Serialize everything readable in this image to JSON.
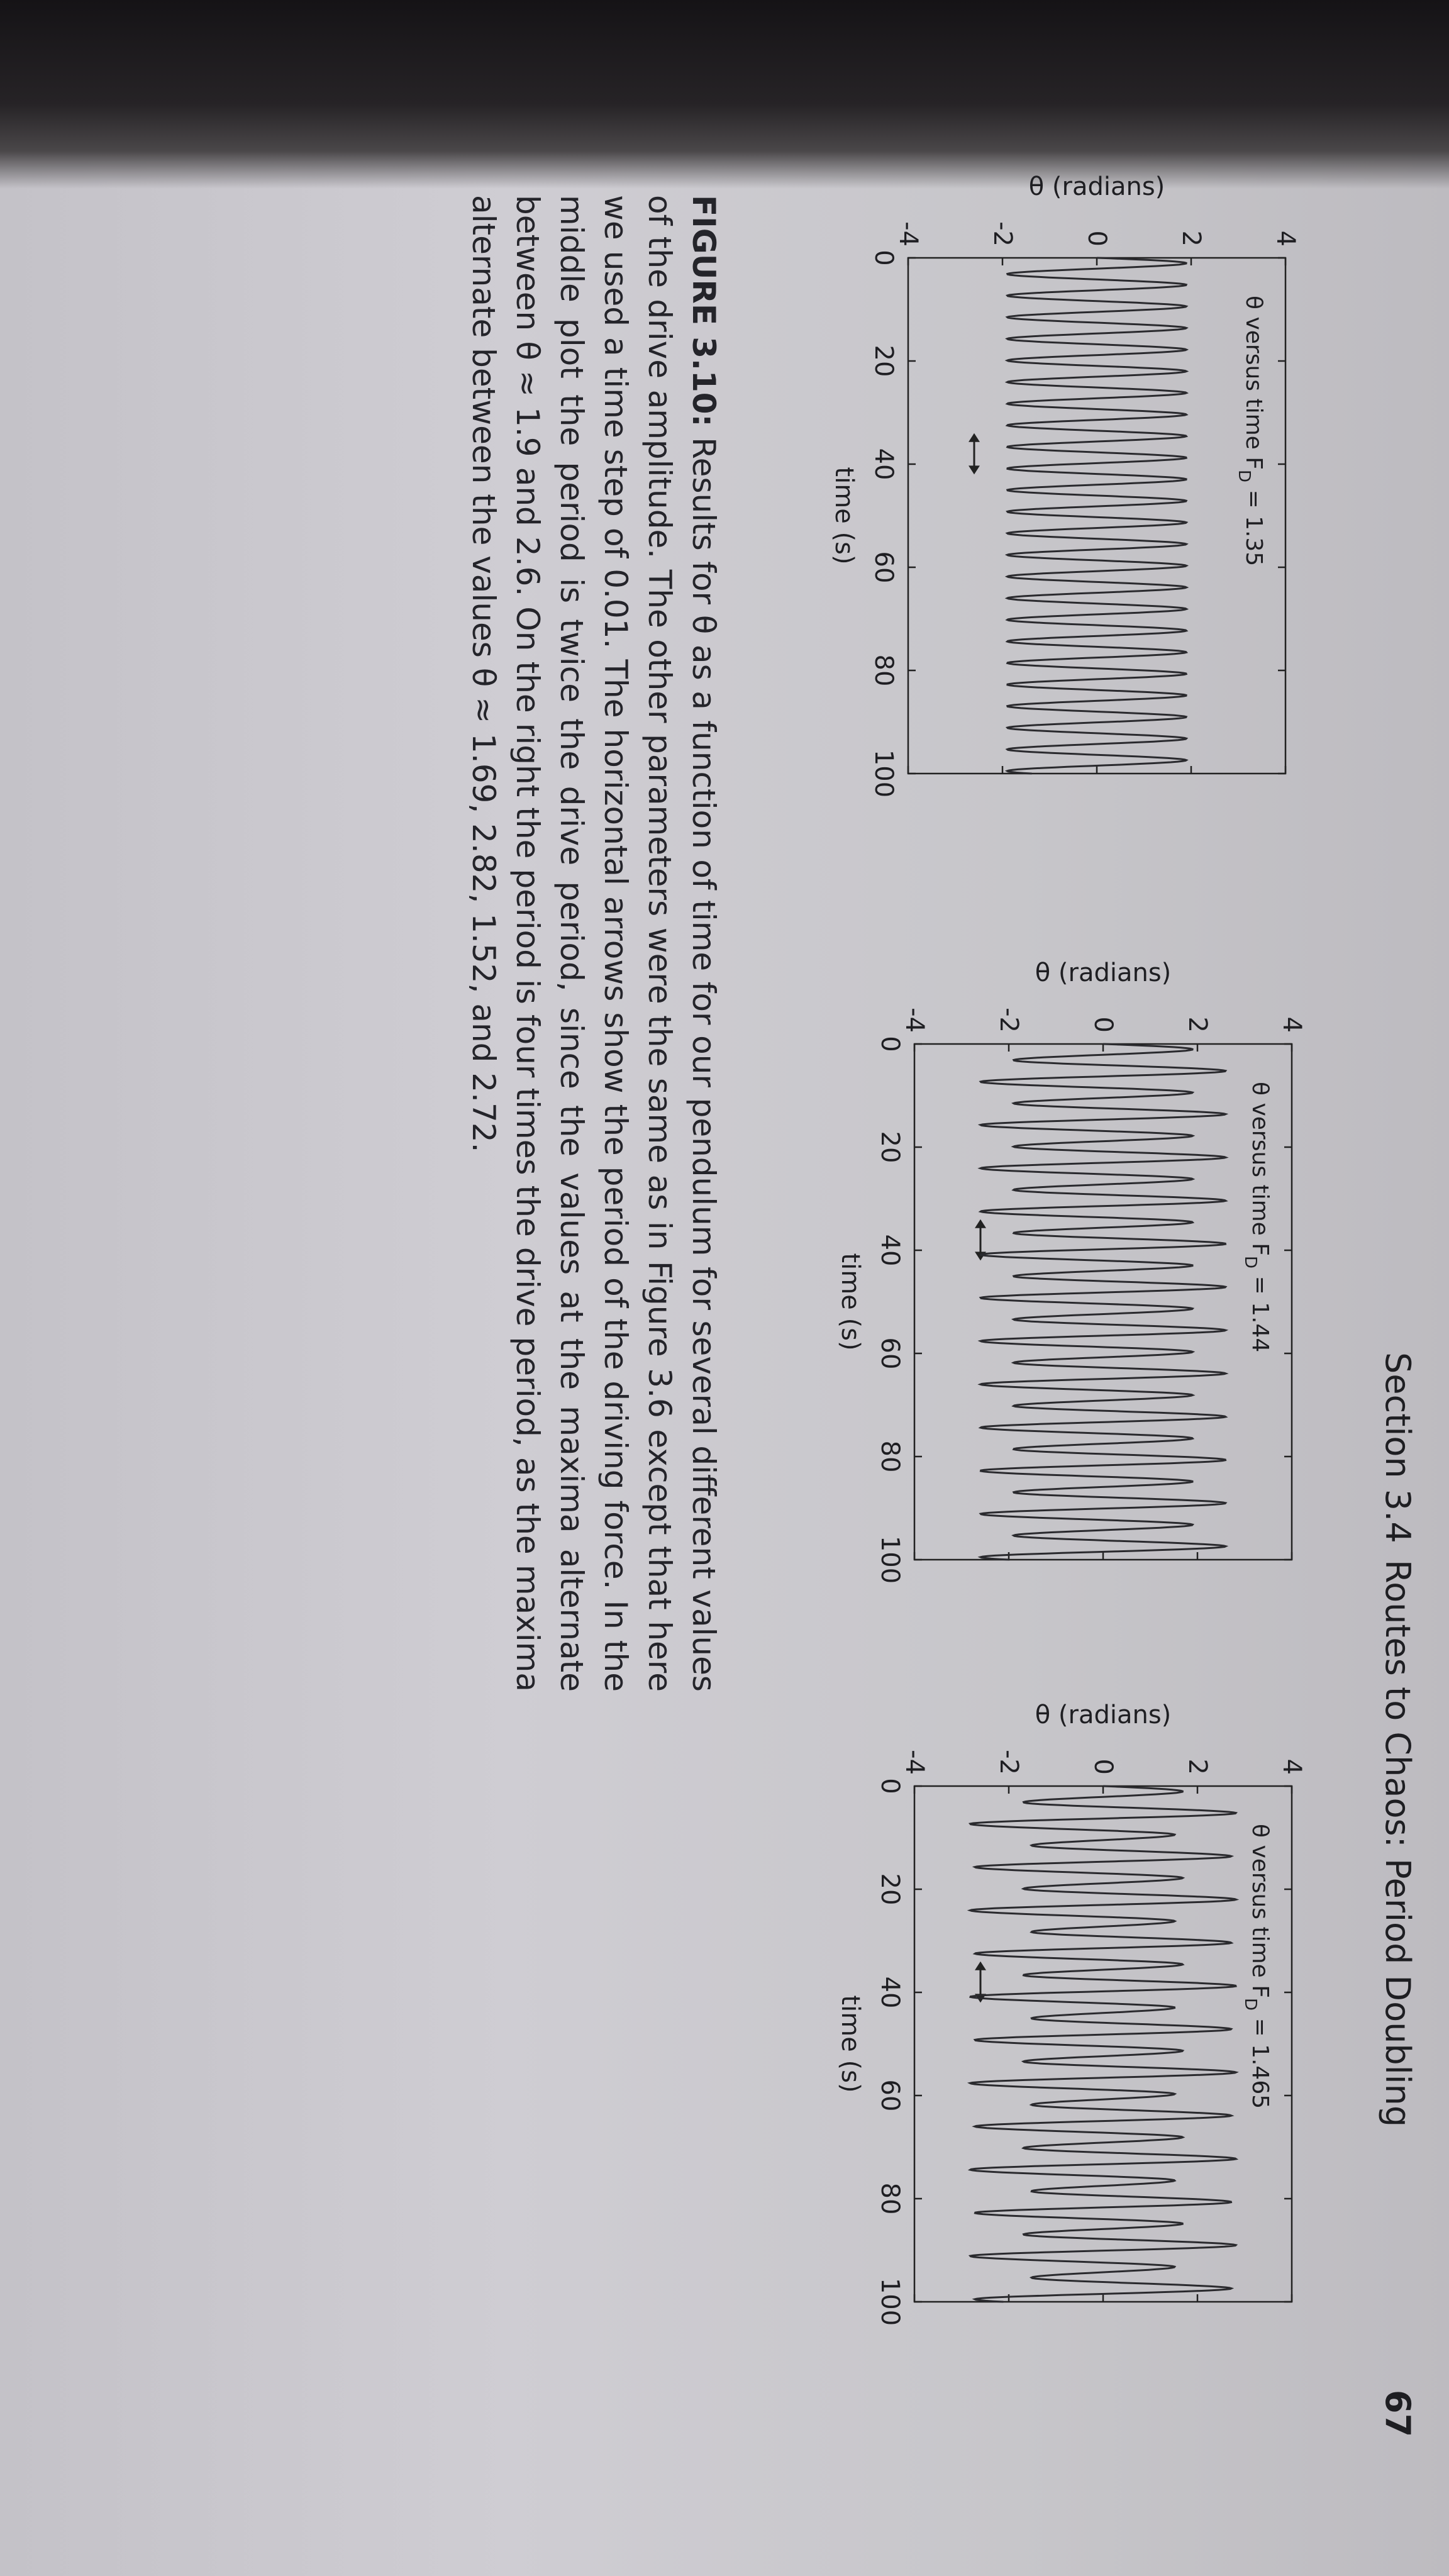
{
  "header": {
    "section": "Section 3.4",
    "title": "Routes to Chaos: Period Doubling",
    "page_number": "67"
  },
  "chart_data": [
    {
      "type": "line",
      "panel_label": "θ versus time",
      "fd_symbol": "F",
      "fd_subscript": "D",
      "fd_value": "= 1.35",
      "ylabel": "θ (radians)",
      "xlabel": "time (s)",
      "xlim": [
        0,
        100
      ],
      "ylim": [
        -4,
        4
      ],
      "xticks": [
        "0",
        "20",
        "40",
        "60",
        "80",
        "100"
      ],
      "yticks": [
        "-4",
        "-2",
        "0",
        "2",
        "4"
      ],
      "drive_period": 4.19,
      "maxima": [
        1.9
      ],
      "minima": [
        -1.9
      ],
      "arrow_x": [
        34,
        42
      ],
      "arrow_y": -2.6,
      "arrow_glyph": "↔"
    },
    {
      "type": "line",
      "panel_label": "θ versus time",
      "fd_symbol": "F",
      "fd_subscript": "D",
      "fd_value": "= 1.44",
      "ylabel": "θ (radians)",
      "xlabel": "time (s)",
      "xlim": [
        0,
        100
      ],
      "ylim": [
        -4,
        4
      ],
      "xticks": [
        "0",
        "20",
        "40",
        "60",
        "80",
        "100"
      ],
      "yticks": [
        "-4",
        "-2",
        "0",
        "2",
        "4"
      ],
      "drive_period": 4.19,
      "maxima": [
        1.9,
        2.6
      ],
      "minima": [
        -1.9,
        -2.6
      ],
      "arrow_x": [
        34,
        42
      ],
      "arrow_y": -2.6,
      "arrow_glyph": "↔"
    },
    {
      "type": "line",
      "panel_label": "θ versus time",
      "fd_symbol": "F",
      "fd_subscript": "D",
      "fd_value": "= 1.465",
      "ylabel": "θ (radians)",
      "xlabel": "time (s)",
      "xlim": [
        0,
        100
      ],
      "ylim": [
        -4,
        4
      ],
      "xticks": [
        "0",
        "20",
        "40",
        "60",
        "80",
        "100"
      ],
      "yticks": [
        "-4",
        "-2",
        "0",
        "2",
        "4"
      ],
      "drive_period": 4.19,
      "maxima": [
        1.69,
        2.82,
        1.52,
        2.72
      ],
      "minima": [
        -1.69,
        -2.82,
        -1.52,
        -2.72
      ],
      "arrow_x": [
        34,
        42
      ],
      "arrow_y": -2.6,
      "arrow_glyph": "↔"
    }
  ],
  "caption": {
    "label": "FIGURE 3.10:",
    "text": "Results for θ as a function of time for our pendulum for several different values of the drive amplitude. The other parameters were the same as in Figure 3.6 except that here we used a time step of 0.01. The horizontal arrows show the period of the driving force. In the middle plot the period is twice the drive period, since the values at the maxima alternate between θ ≈ 1.9 and 2.6. On the right the period is four times the drive period, as the maxima alternate between the values θ ≈ 1.69, 2.82, 1.52, and 2.72."
  }
}
